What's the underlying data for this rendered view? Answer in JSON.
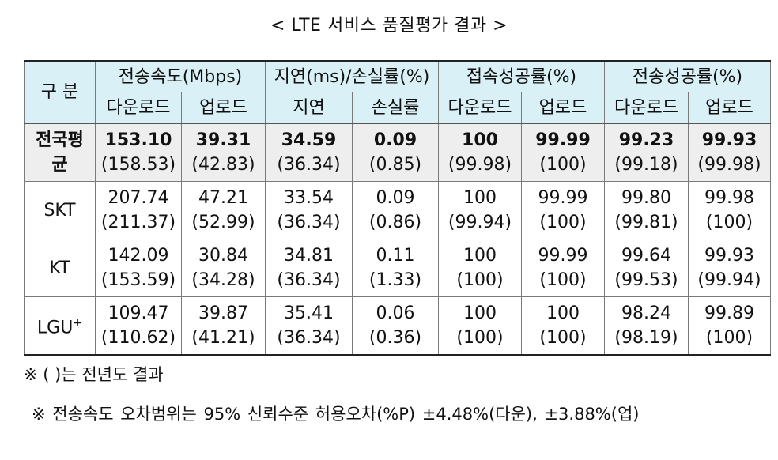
{
  "title": "< LTE 서비스 품질평가 결과 >",
  "header": {
    "category": "구 분",
    "groups": [
      "전송속도(Mbps)",
      "지연(ms)/손실률(%)",
      "접속성공률(%)",
      "전송성공률(%)"
    ],
    "subs": [
      "다운로드",
      "업로드",
      "지연",
      "손실률",
      "다운로드",
      "업로드",
      "다운로드",
      "업로드"
    ]
  },
  "rows": [
    {
      "label": "전국평균",
      "cells": [
        {
          "cur": "153.10",
          "prev": "(158.53)"
        },
        {
          "cur": "39.31",
          "prev": "(42.83)"
        },
        {
          "cur": "34.59",
          "prev": "(36.34)"
        },
        {
          "cur": "0.09",
          "prev": "(0.85)"
        },
        {
          "cur": "100",
          "prev": "(99.98)"
        },
        {
          "cur": "99.99",
          "prev": "(100)"
        },
        {
          "cur": "99.23",
          "prev": "(99.18)"
        },
        {
          "cur": "99.93",
          "prev": "(99.98)"
        }
      ]
    },
    {
      "label": "SKT",
      "cells": [
        {
          "cur": "207.74",
          "prev": "(211.37)"
        },
        {
          "cur": "47.21",
          "prev": "(52.99)"
        },
        {
          "cur": "33.54",
          "prev": "(36.34)"
        },
        {
          "cur": "0.09",
          "prev": "(0.86)"
        },
        {
          "cur": "100",
          "prev": "(99.94)"
        },
        {
          "cur": "99.99",
          "prev": "(100)"
        },
        {
          "cur": "99.80",
          "prev": "(99.81)"
        },
        {
          "cur": "99.98",
          "prev": "(100)"
        }
      ]
    },
    {
      "label": "KT",
      "cells": [
        {
          "cur": "142.09",
          "prev": "(153.59)"
        },
        {
          "cur": "30.84",
          "prev": "(34.28)"
        },
        {
          "cur": "34.81",
          "prev": "(36.34)"
        },
        {
          "cur": "0.11",
          "prev": "(1.33)"
        },
        {
          "cur": "100",
          "prev": "(100)"
        },
        {
          "cur": "99.99",
          "prev": "(100)"
        },
        {
          "cur": "99.64",
          "prev": "(99.53)"
        },
        {
          "cur": "99.93",
          "prev": "(99.94)"
        }
      ]
    },
    {
      "label": "LGU",
      "label_sup": "+",
      "cells": [
        {
          "cur": "109.47",
          "prev": "(110.62)"
        },
        {
          "cur": "39.87",
          "prev": "(41.21)"
        },
        {
          "cur": "35.41",
          "prev": "(36.34)"
        },
        {
          "cur": "0.06",
          "prev": "(0.36)"
        },
        {
          "cur": "100",
          "prev": "(100)"
        },
        {
          "cur": "100",
          "prev": "(100)"
        },
        {
          "cur": "98.24",
          "prev": "(98.19)"
        },
        {
          "cur": "99.89",
          "prev": "(100)"
        }
      ]
    }
  ],
  "notes": [
    "※ ( )는 전년도 결과",
    "※  전송속도 오차범위는 95% 신뢰수준 허용오차(%P) ±4.48%(다운), ±3.88%(업)"
  ],
  "colors": {
    "header_bg": "#d9f1f6",
    "average_row_bg": "#eeeeee",
    "border": "#7a7a7a"
  }
}
